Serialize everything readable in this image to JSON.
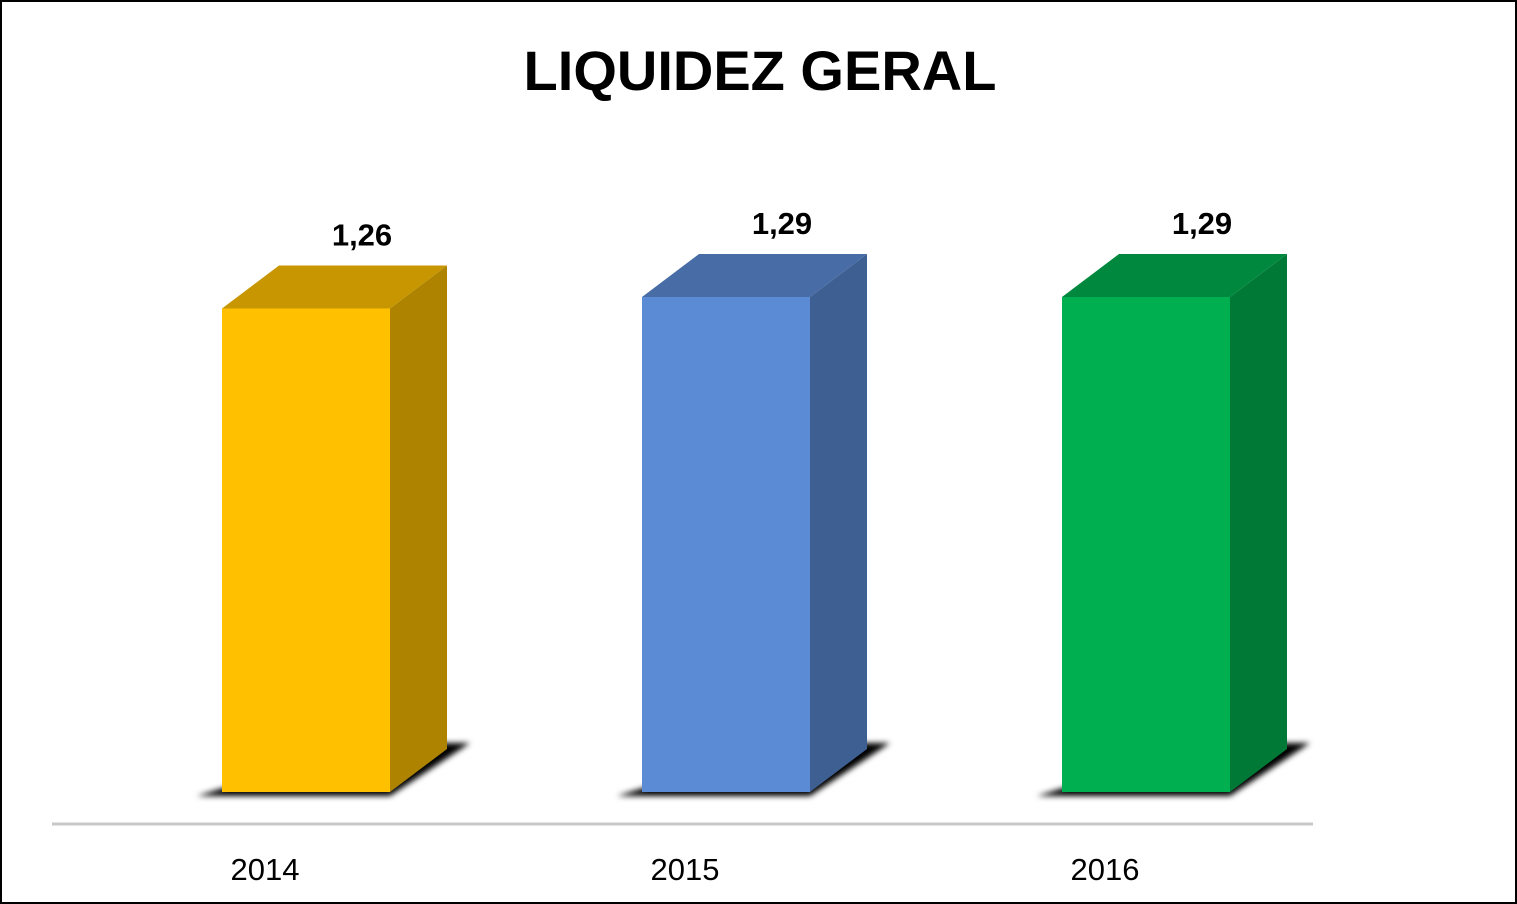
{
  "chart_data": {
    "type": "bar3d",
    "title": "LIQUIDEZ GERAL",
    "categories": [
      "2014",
      "2015",
      "2016"
    ],
    "values": [
      1.26,
      1.29,
      1.29
    ],
    "value_labels": [
      "1,26",
      "1,29",
      "1,29"
    ],
    "colors": [
      "#ffc000",
      "#5b8bd5",
      "#00b050"
    ]
  }
}
